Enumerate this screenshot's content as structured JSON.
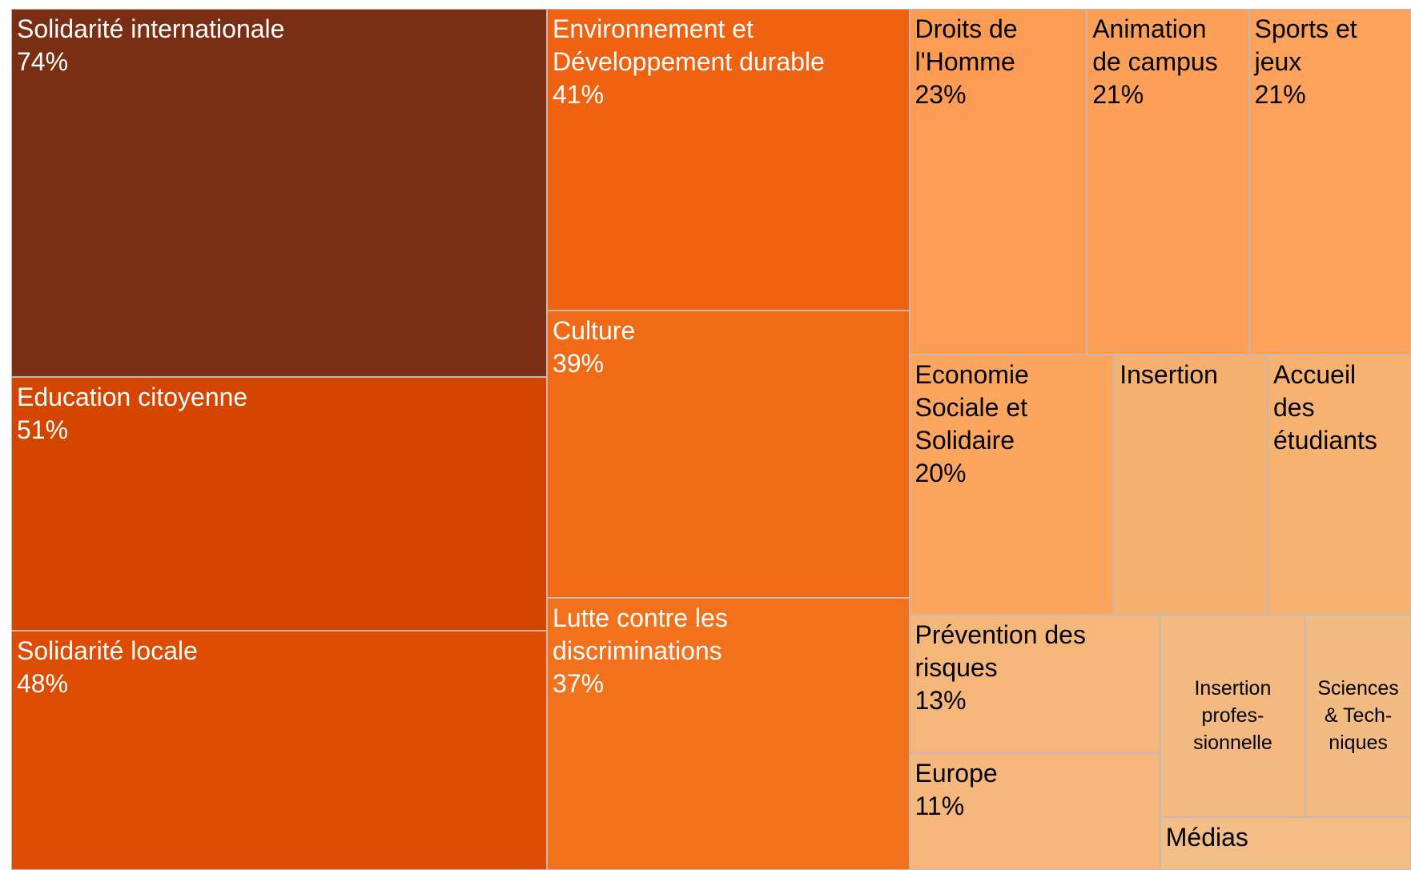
{
  "chart_data": {
    "type": "treemap",
    "categories": [
      "Solidarité internationale",
      "Education citoyenne",
      "Solidarité locale",
      "Environnement et\nDéveloppement durable",
      "Culture",
      "Lutte contre les\ndiscriminations",
      "Droits de\nl'Homme",
      "Animation\nde campus",
      "Sports et\njeux",
      "Economie\nSociale et\nSolidaire",
      "Insertion",
      "Accueil\ndes\nétudiants",
      "Prévention des\nrisques",
      "Europe",
      "Insertion\nprofes-\nsionnelle",
      "Sciences\n& Tech-\nniques",
      "Médias"
    ],
    "values": [
      74,
      51,
      48,
      41,
      39,
      37,
      23,
      21,
      21,
      20,
      15,
      14,
      13,
      11,
      11,
      8,
      5
    ],
    "value_labels": [
      "74%",
      "51%",
      "48%",
      "41%",
      "39%",
      "37%",
      "23%",
      "21%",
      "21%",
      "20%",
      null,
      null,
      "13%",
      "11%",
      null,
      null,
      null
    ],
    "colors": [
      "#7a2e13",
      "#d44500",
      "#dc4c02",
      "#ee6212",
      "#f06a17",
      "#f2711d",
      "#fb9b54",
      "#fc9f58",
      "#fca25c",
      "#fca55f",
      "#f7b070",
      "#f7b272",
      "#f5b67a",
      "#f5b77c",
      "#f4b881",
      "#f3bb84",
      "#f3bd88"
    ]
  }
}
